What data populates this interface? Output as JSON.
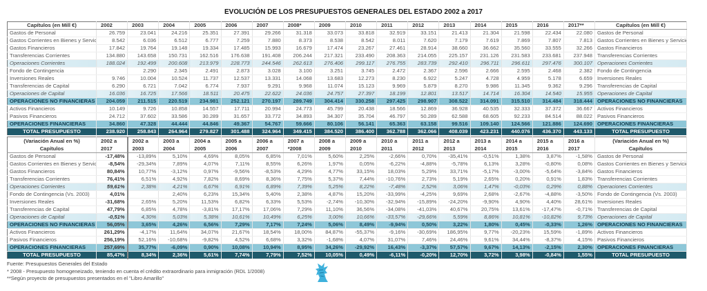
{
  "title": "EVOLUCIÓN DE LOS PRESUPUESTOS GENERALES DEL ESTADO 2002 a 2017",
  "colors": {
    "highlight_light": "#dcedf3",
    "highlight_medium": "#8ec7d8",
    "total_dark": "#1f5a6b"
  },
  "top": {
    "label_header": "Capítulos (en Mill €)",
    "columns": [
      "2002",
      "2003",
      "2004",
      "2005",
      "2006",
      "2007",
      "2008*",
      "2009",
      "2010",
      "2011",
      "2012",
      "2013",
      "2014",
      "2015",
      "2016",
      "2017**"
    ],
    "rows": [
      {
        "label": "Gastos de Personal",
        "style": "normal",
        "values": [
          "26.759",
          "23.041",
          "24.216",
          "25.351",
          "27.391",
          "29.266",
          "31.318",
          "33.073",
          "33.818",
          "32.919",
          "33.151",
          "21.413",
          "21.304",
          "21.598",
          "22.434",
          "22.080"
        ]
      },
      {
        "label": "Gastos Corrientes en Bienes y Servicios",
        "style": "normal",
        "values": [
          "8.542",
          "6.036",
          "6.512",
          "6.777",
          "7.259",
          "7.880",
          "8.373",
          "8.538",
          "8.542",
          "8.011",
          "7.620",
          "7.179",
          "7.619",
          "7.869",
          "7.807",
          "7.813"
        ]
      },
      {
        "label": "Gastos Financieros",
        "style": "normal",
        "values": [
          "17.842",
          "19.764",
          "19.148",
          "19.334",
          "17.485",
          "15.993",
          "16.679",
          "17.474",
          "23.267",
          "27.461",
          "28.914",
          "38.660",
          "36.662",
          "35.560",
          "33.555",
          "32.266"
        ]
      },
      {
        "label": "Transferencias Corrientes",
        "style": "normal",
        "values": [
          "134.880",
          "143.658",
          "150.731",
          "162.516",
          "176.638",
          "191.408",
          "206.244",
          "217.321",
          "233.490",
          "208.363",
          "214.055",
          "225.157",
          "231.126",
          "231.583",
          "233.681",
          "237.948"
        ]
      },
      {
        "label": "Operaciones Corrientes",
        "style": "sub",
        "values": [
          "188.024",
          "192.499",
          "200.608",
          "213.979",
          "228.773",
          "244.546",
          "262.613",
          "276.406",
          "299.117",
          "276.755",
          "283.739",
          "292.410",
          "296.711",
          "296.611",
          "297.476",
          "300.107"
        ]
      },
      {
        "label": "Fondo de Contingencia",
        "style": "normal",
        "values": [
          "",
          "2.290",
          "2.345",
          "2.491",
          "2.873",
          "3.028",
          "3.100",
          "3.251",
          "3.745",
          "2.472",
          "2.367",
          "2.596",
          "2.666",
          "2.595",
          "2.468",
          "2.382"
        ]
      },
      {
        "label": "Inversiones Reales",
        "style": "normal",
        "values": [
          "9.746",
          "10.004",
          "10.524",
          "11.737",
          "12.537",
          "13.331",
          "14.068",
          "13.683",
          "12.273",
          "8.230",
          "6.922",
          "5.247",
          "4.728",
          "4.959",
          "5.178",
          "6.659"
        ]
      },
      {
        "label": "Transferencias de Capital",
        "style": "normal",
        "values": [
          "6.290",
          "6.721",
          "7.042",
          "6.774",
          "7.937",
          "9.291",
          "9.968",
          "11.074",
          "15.123",
          "9.969",
          "5.879",
          "8.270",
          "9.986",
          "11.345",
          "9.362",
          "9.296"
        ]
      },
      {
        "label": "Operaciones de Capital",
        "style": "sub",
        "values": [
          "16.036",
          "16.725",
          "17.566",
          "18.511",
          "20.475",
          "22.622",
          "24.036",
          "24.757",
          "27.397",
          "18.199",
          "12.801",
          "13.517",
          "14.714",
          "16.304",
          "14.540",
          "15.955"
        ]
      },
      {
        "label": "OPERACIONES NO FINANCIERAS",
        "style": "major",
        "values": [
          "204.059",
          "211.515",
          "220.519",
          "234.981",
          "252.121",
          "270.197",
          "289.749",
          "304.414",
          "330.258",
          "297.425",
          "298.907",
          "308.522",
          "314.091",
          "315.510",
          "314.484",
          "318.444"
        ]
      },
      {
        "label": "Activos Financieros",
        "style": "normal",
        "values": [
          "10.149",
          "9.726",
          "10.858",
          "14.557",
          "17.711",
          "20.994",
          "24.773",
          "45.799",
          "20.438",
          "18.566",
          "12.869",
          "36.928",
          "40.535",
          "32.333",
          "37.372",
          "36.667"
        ]
      },
      {
        "label": "Pasivos Financieros",
        "style": "normal",
        "values": [
          "24.712",
          "37.602",
          "33.586",
          "30.289",
          "31.657",
          "33.772",
          "34.893",
          "34.307",
          "35.704",
          "46.797",
          "50.289",
          "62.588",
          "68.605",
          "92.233",
          "84.514",
          "88.022"
        ]
      },
      {
        "label": "OPERACIONES FINANCIERAS",
        "style": "major",
        "values": [
          "34.860",
          "47.328",
          "44.444",
          "44.846",
          "49.367",
          "54.767",
          "59.666",
          "80.106",
          "56.141",
          "65.363",
          "63.158",
          "99.516",
          "109.140",
          "124.566",
          "121.886",
          "124.690"
        ]
      },
      {
        "label": "TOTAL PRESUPUESTO",
        "style": "total",
        "values": [
          "238.920",
          "258.843",
          "264.964",
          "279.827",
          "301.488",
          "324.964",
          "349.415",
          "384.520",
          "386.400",
          "362.788",
          "362.066",
          "408.039",
          "423.231",
          "440.076",
          "436.370",
          "443.133"
        ]
      }
    ]
  },
  "bottom": {
    "label_header": {
      "l1": "(Variación Anual en %)",
      "l2": "Capítulos"
    },
    "columns": [
      {
        "l1": "2002 a",
        "l2": "2017"
      },
      {
        "l1": "2002 a",
        "l2": "2003"
      },
      {
        "l1": "2003 a",
        "l2": "2004"
      },
      {
        "l1": "2004 a",
        "l2": "2005"
      },
      {
        "l1": "2005 a",
        "l2": "2006"
      },
      {
        "l1": "2006 a",
        "l2": "2007"
      },
      {
        "l1": "2007 a",
        "l2": "*2008"
      },
      {
        "l1": "2008 a",
        "l2": "2009"
      },
      {
        "l1": "2009 a",
        "l2": "2010"
      },
      {
        "l1": "2010 a",
        "l2": "2011"
      },
      {
        "l1": "2011 a",
        "l2": "2012"
      },
      {
        "l1": "2012 a",
        "l2": "2013"
      },
      {
        "l1": "2013 a",
        "l2": "2014"
      },
      {
        "l1": "2014 a",
        "l2": "2015"
      },
      {
        "l1": "2015 a",
        "l2": "2016"
      },
      {
        "l1": "2016 a",
        "l2": "2017"
      }
    ],
    "rows": [
      {
        "label": "Gastos de Personal",
        "style": "normal",
        "values": [
          "-17,48%",
          "-13,89%",
          "5,10%",
          "4,69%",
          "8,05%",
          "6,85%",
          "7,01%",
          "5,60%",
          "2,25%",
          "-2,66%",
          "0,70%",
          "-35,41%",
          "-0,51%",
          "1,38%",
          "3,87%",
          "-1,58%"
        ]
      },
      {
        "label": "Gastos Corrientes en Bienes y Servicios",
        "style": "normal",
        "values": [
          "-8,54%",
          "-29,34%",
          "7,89%",
          "4,07%",
          "7,11%",
          "8,55%",
          "6,26%",
          "1,97%",
          "0,05%",
          "-6,22%",
          "-4,88%",
          "-5,78%",
          "6,13%",
          "3,28%",
          "-0,80%",
          "0,08%"
        ]
      },
      {
        "label": "Gastos Financieros",
        "style": "normal",
        "values": [
          "80,84%",
          "10,77%",
          "-3,12%",
          "0,97%",
          "-9,56%",
          "-8,53%",
          "4,29%",
          "4,77%",
          "33,15%",
          "18,03%",
          "5,29%",
          "33,71%",
          "-5,17%",
          "-3,00%",
          "-5,64%",
          "-3,84%"
        ]
      },
      {
        "label": "Transferencias Corrientes",
        "style": "normal",
        "values": [
          "76,41%",
          "6,51%",
          "4,92%",
          "7,82%",
          "8,69%",
          "8,36%",
          "7,75%",
          "5,37%",
          "7,44%",
          "-10,76%",
          "2,73%",
          "5,19%",
          "2,65%",
          "0,20%",
          "0,91%",
          "1,83%"
        ]
      },
      {
        "label": "Operaciones Corrientes",
        "style": "sub",
        "values": [
          "59,61%",
          "2,38%",
          "4,21%",
          "6,67%",
          "6,91%",
          "6,89%",
          "7,39%",
          "5,25%",
          "8,22%",
          "-7,48%",
          "2,52%",
          "3,06%",
          "1,47%",
          "-0,03%",
          "0,29%",
          "0,88%"
        ]
      },
      {
        "label": "Fondo de Contingencia (Vs. 2003)",
        "style": "normal",
        "values": [
          "4,01%",
          "",
          "2,40%",
          "6,23%",
          "15,34%",
          "5,40%",
          "2,38%",
          "4,87%",
          "15,20%",
          "-33,99%",
          "-4,25%",
          "9,69%",
          "2,68%",
          "-2,67%",
          "-4,88%",
          "-3,50%"
        ]
      },
      {
        "label": "Inversiones Reales",
        "style": "normal",
        "values": [
          "-31,68%",
          "2,65%",
          "5,20%",
          "11,53%",
          "6,82%",
          "6,33%",
          "5,53%",
          "-2,74%",
          "-10,30%",
          "-32,94%",
          "-15,89%",
          "-24,20%",
          "-9,90%",
          "4,90%",
          "4,40%",
          "28,61%"
        ]
      },
      {
        "label": "Transferencias de Capital",
        "style": "normal",
        "values": [
          "47,79%",
          "6,85%",
          "4,78%",
          "-3,81%",
          "17,17%",
          "17,06%",
          "7,29%",
          "11,10%",
          "36,56%",
          "-34,08%",
          "-41,03%",
          "40,67%",
          "20,75%",
          "13,61%",
          "-17,47%",
          "-0,71%"
        ]
      },
      {
        "label": "Operaciones de Capital",
        "style": "sub",
        "values": [
          "-0,51%",
          "4,30%",
          "5,03%",
          "5,38%",
          "10,61%",
          "10,49%",
          "6,25%",
          "3,00%",
          "10,66%",
          "-33,57%",
          "-29,66%",
          "5,59%",
          "8,86%",
          "10,81%",
          "-10,82%",
          "9,73%"
        ]
      },
      {
        "label": "OPERACIONES NO FINANCIERAS",
        "style": "major",
        "values": [
          "56,05%",
          "3,65%",
          "4,26%",
          "6,56%",
          "7,29%",
          "7,17%",
          "7,24%",
          "5,06%",
          "8,49%",
          "-9,94%",
          "0,50%",
          "3,22%",
          "1,80%",
          "0,45%",
          "-0,33%",
          "1,26%"
        ]
      },
      {
        "label": "Activos Financieros",
        "style": "normal",
        "values": [
          "261,29%",
          "-4,17%",
          "11,64%",
          "34,07%",
          "21,67%",
          "18,54%",
          "18,00%",
          "84,87%",
          "-55,37%",
          "-9,16%",
          "-30,69%",
          "186,95%",
          "9,77%",
          "-20,23%",
          "15,59%",
          "-1,89%"
        ]
      },
      {
        "label": "Pasivos Financieros",
        "style": "normal",
        "values": [
          "256,19%",
          "52,16%",
          "-10,68%",
          "-9,82%",
          "4,52%",
          "6,68%",
          "3,32%",
          "-1,68%",
          "4,07%",
          "31,07%",
          "7,46%",
          "24,46%",
          "9,61%",
          "34,44%",
          "-8,37%",
          "4,15%"
        ]
      },
      {
        "label": "OPERACIONES FINANCIERAS",
        "style": "major",
        "values": [
          "257,69%",
          "35,77%",
          "-6,09%",
          "0,90%",
          "10,08%",
          "10,94%",
          "8,95%",
          "34,26%",
          "-29,92%",
          "16,43%",
          "-3,37%",
          "57,57%",
          "9,67%",
          "14,13%",
          "-2,15%",
          "2,30%"
        ]
      },
      {
        "label": "TOTAL PRESUPUESTO",
        "style": "total",
        "values": [
          "85,47%",
          "8,34%",
          "2,36%",
          "5,61%",
          "7,74%",
          "7,79%",
          "7,52%",
          "10,05%",
          "0,49%",
          "-6,11%",
          "-0,20%",
          "12,70%",
          "3,72%",
          "3,98%",
          "-0,84%",
          "1,55%"
        ]
      }
    ]
  },
  "footer": {
    "source": "Fuente: Presupuestos Generales del Estado",
    "note1": "* 2008 - Presupuesto homogeneizado, teniendo en cuenta el crédito extraordinario para inmigración (RDL 1/2008)",
    "note2": "**Según proyecto de presupuestos presentados en el \"Libro Amarillo\""
  },
  "logo": {
    "icon": "griffin-logo",
    "color": "#2aa9d8"
  }
}
